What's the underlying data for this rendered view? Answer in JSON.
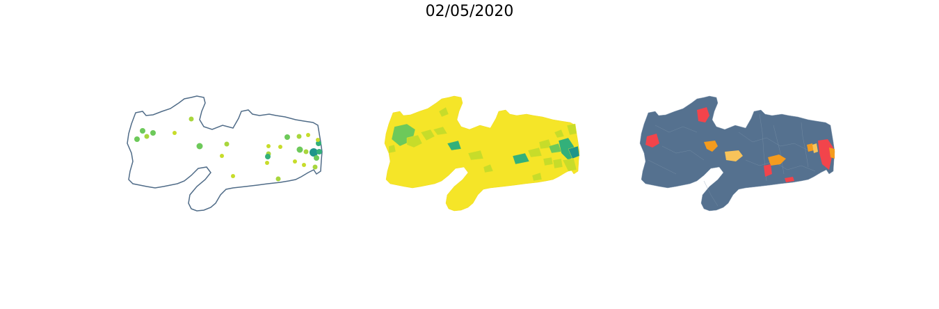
{
  "title": "02/05/2020",
  "colors": {
    "outline": "#4f6b87",
    "base_yellow": "#f5e528",
    "lime": "#c7dc2a",
    "green": "#6dc95a",
    "teal_green": "#33b07a",
    "teal": "#1f958a",
    "slate": "#55718f",
    "red": "#f2444b",
    "orange": "#f49b1e",
    "light_orange": "#f8c35a"
  },
  "panels": [
    {
      "name": "bubble-map",
      "style": "outline-with-points"
    },
    {
      "name": "choropleth-map",
      "style": "sequential-yellow-green"
    },
    {
      "name": "category-map",
      "style": "slate-with-highlights"
    }
  ]
}
